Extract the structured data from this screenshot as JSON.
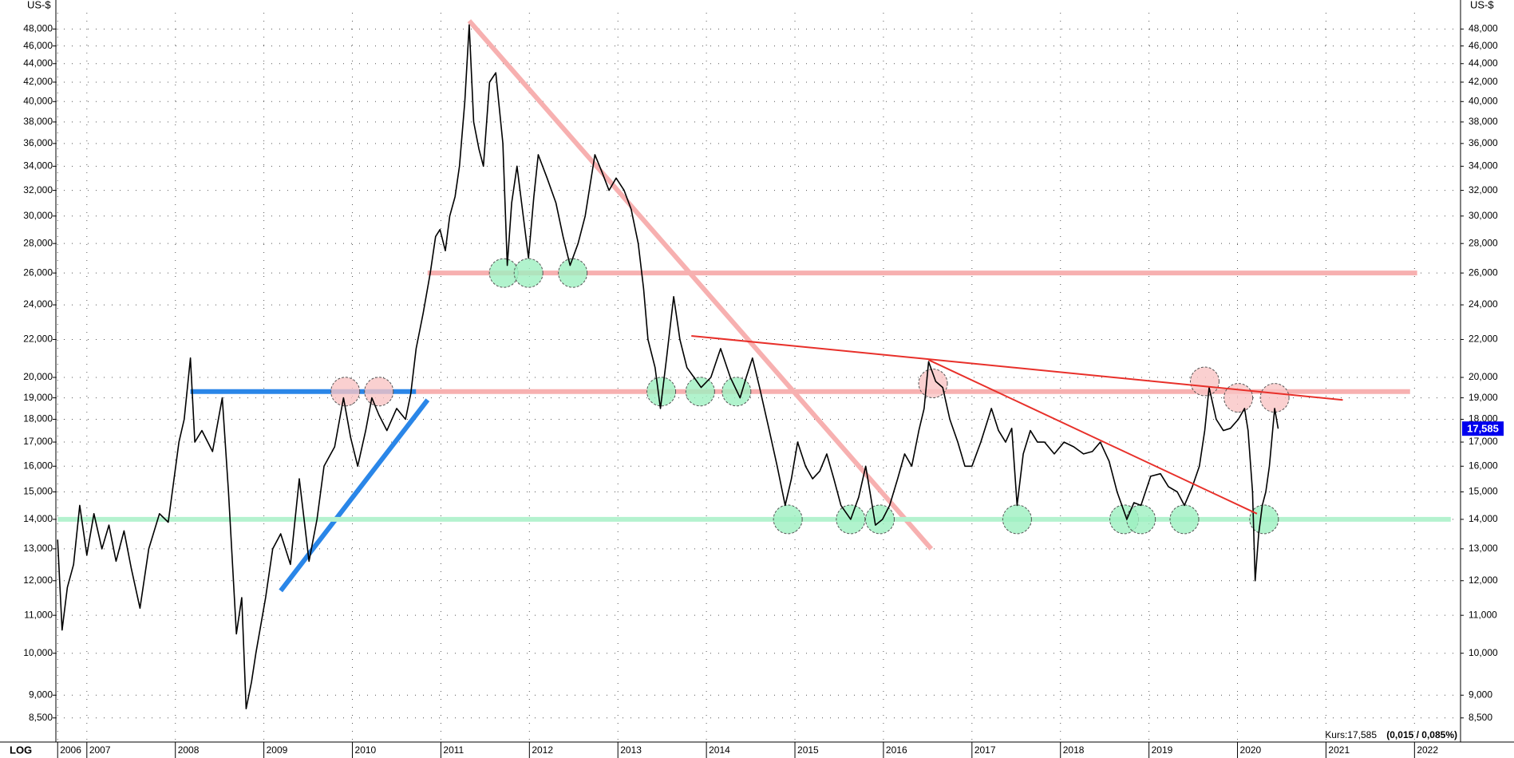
{
  "chart_data": {
    "type": "line",
    "log": true,
    "grid": true,
    "y_unit": "US-$",
    "scale_label": "LOG",
    "xlim": [
      2006.65,
      2022.52
    ],
    "ylim": [
      8000,
      50000
    ],
    "xticks": [
      {
        "value": 2006.67,
        "label": "2006"
      },
      2007,
      2008,
      2009,
      2010,
      2011,
      2012,
      2013,
      2014,
      2015,
      2016,
      2017,
      2018,
      2019,
      2020,
      2021,
      2022
    ],
    "yticks": [
      {
        "value": 8500,
        "label": "8,500"
      },
      {
        "value": 9000,
        "label": "9,000"
      },
      {
        "value": 10000,
        "label": "10,000"
      },
      {
        "value": 11000,
        "label": "11,000"
      },
      {
        "value": 12000,
        "label": "12,000"
      },
      {
        "value": 13000,
        "label": "13,000"
      },
      {
        "value": 14000,
        "label": "14,000"
      },
      {
        "value": 15000,
        "label": "15,000"
      },
      {
        "value": 16000,
        "label": "16,000"
      },
      {
        "value": 17000,
        "label": "17,000"
      },
      {
        "value": 18000,
        "label": "18,000"
      },
      {
        "value": 19000,
        "label": "19,000"
      },
      {
        "value": 20000,
        "label": "20,000"
      },
      {
        "value": 22000,
        "label": "22,000"
      },
      {
        "value": 24000,
        "label": "24,000"
      },
      {
        "value": 26000,
        "label": "26,000"
      },
      {
        "value": 28000,
        "label": "28,000"
      },
      {
        "value": 30000,
        "label": "30,000"
      },
      {
        "value": 32000,
        "label": "32,000"
      },
      {
        "value": 34000,
        "label": "34,000"
      },
      {
        "value": 36000,
        "label": "36,000"
      },
      {
        "value": 38000,
        "label": "38,000"
      },
      {
        "value": 40000,
        "label": "40,000"
      },
      {
        "value": 42000,
        "label": "42,000"
      },
      {
        "value": 44000,
        "label": "44,000"
      },
      {
        "value": 46000,
        "label": "46,000"
      },
      {
        "value": 48000,
        "label": "48,000"
      }
    ],
    "series": [
      {
        "color": "#000000",
        "x": [
          2006.67,
          2006.72,
          2006.78,
          2006.85,
          2006.92,
          2007.0,
          2007.08,
          2007.17,
          2007.25,
          2007.33,
          2007.42,
          2007.5,
          2007.6,
          2007.7,
          2007.82,
          2007.92,
          2008.04,
          2008.1,
          2008.17,
          2008.22,
          2008.3,
          2008.42,
          2008.53,
          2008.6,
          2008.69,
          2008.75,
          2008.8,
          2008.86,
          2008.91,
          2009.02,
          2009.1,
          2009.19,
          2009.3,
          2009.4,
          2009.51,
          2009.6,
          2009.68,
          2009.8,
          2009.9,
          2009.98,
          2010.06,
          2010.15,
          2010.22,
          2010.3,
          2010.39,
          2010.5,
          2010.6,
          2010.66,
          2010.72,
          2010.8,
          2010.88,
          2010.94,
          2010.99,
          2011.05,
          2011.1,
          2011.16,
          2011.21,
          2011.27,
          2011.32,
          2011.37,
          2011.43,
          2011.48,
          2011.55,
          2011.62,
          2011.7,
          2011.75,
          2011.8,
          2011.86,
          2011.93,
          2011.99,
          2012.05,
          2012.1,
          2012.2,
          2012.3,
          2012.38,
          2012.46,
          2012.55,
          2012.63,
          2012.74,
          2012.82,
          2012.9,
          2012.98,
          2013.07,
          2013.15,
          2013.23,
          2013.29,
          2013.34,
          2013.42,
          2013.48,
          2013.55,
          2013.63,
          2013.7,
          2013.78,
          2013.86,
          2013.94,
          2014.05,
          2014.16,
          2014.27,
          2014.38,
          2014.45,
          2014.52,
          2014.6,
          2014.71,
          2014.8,
          2014.89,
          2014.96,
          2015.03,
          2015.12,
          2015.2,
          2015.28,
          2015.36,
          2015.44,
          2015.52,
          2015.63,
          2015.72,
          2015.8,
          2015.91,
          2015.99,
          2016.07,
          2016.16,
          2016.24,
          2016.32,
          2016.4,
          2016.46,
          2016.51,
          2016.59,
          2016.67,
          2016.75,
          2016.84,
          2016.92,
          2017.0,
          2017.1,
          2017.22,
          2017.3,
          2017.38,
          2017.45,
          2017.51,
          2017.58,
          2017.66,
          2017.74,
          2017.82,
          2017.93,
          2018.04,
          2018.15,
          2018.26,
          2018.36,
          2018.45,
          2018.55,
          2018.64,
          2018.75,
          2018.83,
          2018.91,
          2019.02,
          2019.13,
          2019.22,
          2019.32,
          2019.4,
          2019.49,
          2019.57,
          2019.63,
          2019.68,
          2019.76,
          2019.84,
          2019.92,
          2020.01,
          2020.08,
          2020.12,
          2020.17,
          2020.2,
          2020.24,
          2020.28,
          2020.32,
          2020.36,
          2020.42,
          2020.46
        ],
        "values": [
          13300,
          10600,
          11800,
          12500,
          14500,
          12800,
          14200,
          13000,
          13800,
          12600,
          13600,
          12400,
          11200,
          13000,
          14200,
          13900,
          17000,
          18000,
          21000,
          17000,
          17500,
          16600,
          19000,
          15000,
          10500,
          11500,
          8700,
          9300,
          10000,
          11500,
          13000,
          13500,
          12500,
          15500,
          12600,
          14000,
          16000,
          16800,
          19000,
          17200,
          16000,
          17500,
          19000,
          18200,
          17500,
          18500,
          18000,
          19200,
          21500,
          23500,
          26000,
          28500,
          29000,
          27500,
          30000,
          31500,
          34000,
          40000,
          48500,
          38000,
          35500,
          34000,
          42000,
          43000,
          36000,
          26500,
          31000,
          34000,
          30000,
          27000,
          31500,
          35000,
          33000,
          31000,
          28500,
          26500,
          28000,
          30000,
          35000,
          33500,
          32000,
          33000,
          32000,
          30500,
          28000,
          25000,
          22000,
          20500,
          18500,
          21000,
          24500,
          22000,
          20500,
          20000,
          19500,
          20000,
          21500,
          20000,
          19000,
          20000,
          21000,
          19500,
          17500,
          16000,
          14500,
          15500,
          17000,
          16000,
          15500,
          15800,
          16500,
          15500,
          14500,
          14000,
          14800,
          16000,
          13800,
          14000,
          14500,
          15500,
          16500,
          16000,
          17500,
          18500,
          20800,
          19800,
          19500,
          18000,
          17000,
          16000,
          16000,
          17000,
          18500,
          17500,
          17000,
          17600,
          14500,
          16500,
          17500,
          17000,
          17000,
          16500,
          17000,
          16800,
          16500,
          16600,
          17000,
          16200,
          15000,
          14000,
          14600,
          14500,
          15600,
          15700,
          15200,
          15000,
          14500,
          15200,
          16000,
          17500,
          19500,
          18000,
          17500,
          17600,
          18000,
          18500,
          17500,
          15000,
          12000,
          13500,
          14500,
          15000,
          16000,
          18500,
          17585
        ]
      }
    ],
    "last_price": {
      "value": 17585,
      "label": "17,585",
      "color": "#0000ee"
    },
    "quote": {
      "text": "Kurs:17,585",
      "change": "(0,015 / 0,085%)"
    },
    "bands": [
      {
        "color": "#2a86e8",
        "x": [
          2008.17,
          2010.72
        ],
        "y": [
          19300,
          19300
        ]
      },
      {
        "color": "#2a86e8",
        "x": [
          2009.19,
          2010.85
        ],
        "y": [
          11700,
          18900
        ]
      },
      {
        "color": "#f7b0b0",
        "x": [
          2010.85,
          2022.03
        ],
        "y": [
          26000,
          26000
        ]
      },
      {
        "color": "#f7b0b0",
        "x": [
          2010.72,
          2021.95
        ],
        "y": [
          19300,
          19300
        ]
      },
      {
        "color": "#f7b0b0",
        "x": [
          2011.32,
          2016.54
        ],
        "y": [
          49000,
          13000
        ]
      },
      {
        "color": "#b4f2cf",
        "x": [
          2006.67,
          2022.41
        ],
        "y": [
          14000,
          14000
        ]
      }
    ],
    "trendlines": [
      {
        "color": "#e8302a",
        "x": [
          2013.83,
          2021.19
        ],
        "y": [
          22200,
          18900
        ]
      },
      {
        "color": "#e8302a",
        "x": [
          2016.51,
          2020.22
        ],
        "y": [
          20900,
          14200
        ]
      }
    ],
    "markers": [
      {
        "color": "#9ef0c0",
        "x": [
          2011.71,
          2011.99,
          2012.49,
          2013.49,
          2013.93,
          2014.34,
          2014.92,
          2015.63,
          2015.96,
          2017.51,
          2018.72,
          2018.91,
          2019.4,
          2020.3
        ],
        "y": [
          26000,
          26000,
          26000,
          19300,
          19300,
          19300,
          14000,
          14000,
          14000,
          14000,
          14000,
          14000,
          14000,
          14000
        ]
      },
      {
        "color": "#f9c4c4",
        "x": [
          2009.92,
          2010.3,
          2016.56,
          2019.63,
          2020.01,
          2020.42
        ],
        "y": [
          19300,
          19300,
          19700,
          19800,
          19000,
          19000
        ]
      }
    ]
  }
}
